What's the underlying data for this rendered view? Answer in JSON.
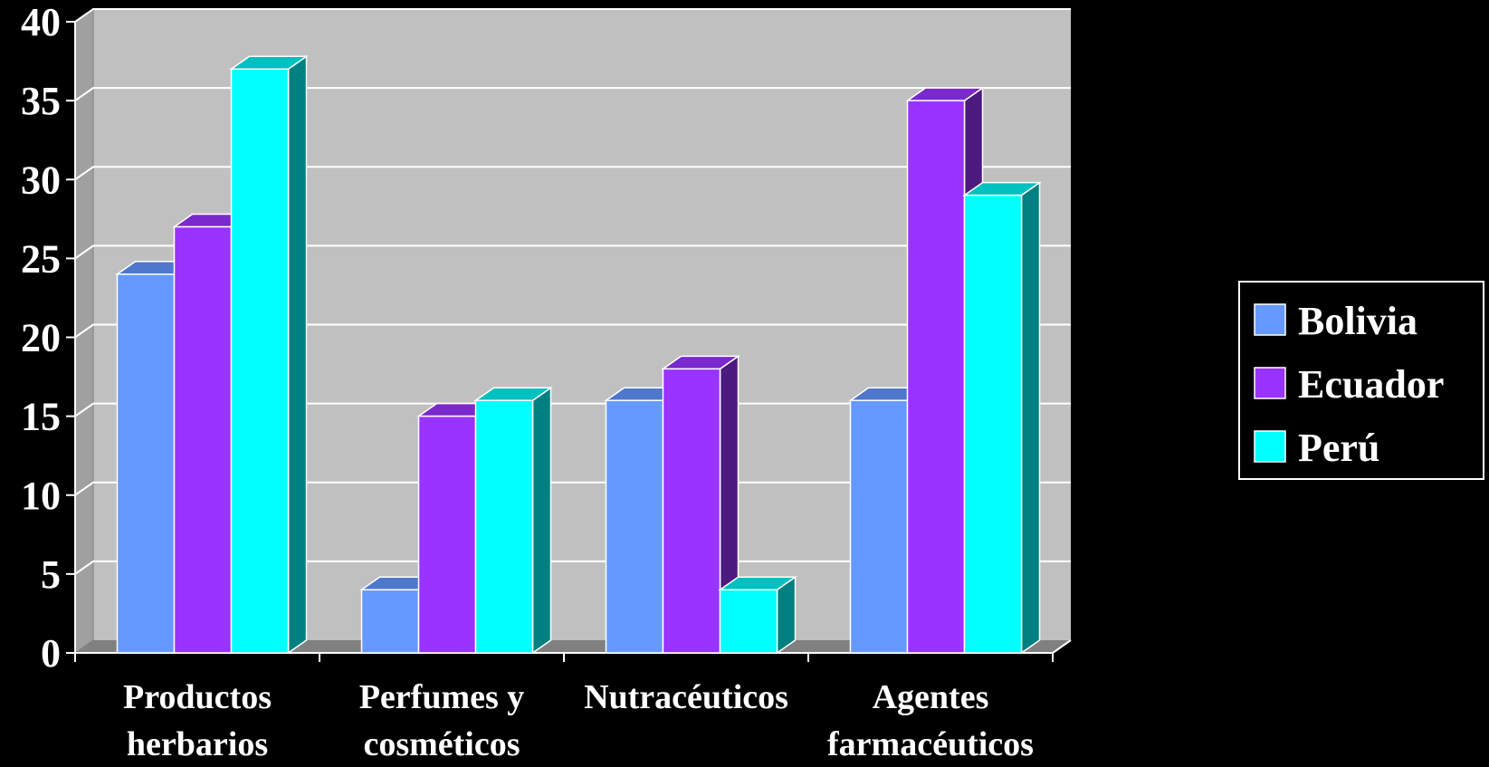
{
  "chart_data": {
    "type": "bar",
    "title": "",
    "xlabel": "",
    "ylabel": "",
    "categories": [
      [
        "Productos",
        "herbarios"
      ],
      [
        "Perfumes y",
        "cosméticos"
      ],
      [
        "Nutracéuticos"
      ],
      [
        "Agentes",
        "farmacéuticos"
      ]
    ],
    "series": [
      {
        "name": "Bolivia",
        "values": [
          24,
          4,
          16,
          16
        ],
        "color": "#6699ff",
        "side_color": "#3355aa",
        "top_color": "#4f77cc"
      },
      {
        "name": "Ecuador",
        "values": [
          27,
          15,
          18,
          35
        ],
        "color": "#9933ff",
        "side_color": "#4d1a80",
        "top_color": "#7a29cc"
      },
      {
        "name": "Perú",
        "values": [
          37,
          16,
          4,
          29
        ],
        "color": "#00ffff",
        "side_color": "#008080",
        "top_color": "#00c0c0"
      }
    ],
    "ylim": [
      0,
      40
    ],
    "yticks": [
      0,
      5,
      10,
      15,
      20,
      25,
      30,
      35,
      40
    ],
    "grid": true,
    "legend_position": "right",
    "plot_background": "#c0c0c0",
    "floor_color": "#808080",
    "gridline_color": "#ffffff"
  }
}
